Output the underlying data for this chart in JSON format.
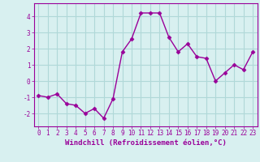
{
  "x": [
    0,
    1,
    2,
    3,
    4,
    5,
    6,
    7,
    8,
    9,
    10,
    11,
    12,
    13,
    14,
    15,
    16,
    17,
    18,
    19,
    20,
    21,
    22,
    23
  ],
  "y": [
    -0.9,
    -1.0,
    -0.8,
    -1.4,
    -1.5,
    -2.0,
    -1.7,
    -2.3,
    -1.1,
    1.8,
    2.6,
    4.2,
    4.2,
    4.2,
    2.7,
    1.8,
    2.3,
    1.5,
    1.4,
    0.0,
    0.5,
    1.0,
    0.7,
    1.8
  ],
  "line_color": "#990099",
  "marker": "D",
  "markersize": 2.5,
  "linewidth": 1.0,
  "xlabel": "Windchill (Refroidissement éolien,°C)",
  "xlabel_fontsize": 6.5,
  "xlim": [
    -0.5,
    23.5
  ],
  "ylim": [
    -2.8,
    4.8
  ],
  "yticks": [
    -2,
    -1,
    0,
    1,
    2,
    3,
    4
  ],
  "xticks": [
    0,
    1,
    2,
    3,
    4,
    5,
    6,
    7,
    8,
    9,
    10,
    11,
    12,
    13,
    14,
    15,
    16,
    17,
    18,
    19,
    20,
    21,
    22,
    23
  ],
  "tick_fontsize": 5.5,
  "grid_color": "#b0d8d8",
  "background_color": "#d8f0f0",
  "tick_color": "#990099",
  "label_color": "#990099",
  "spine_color": "#990099"
}
